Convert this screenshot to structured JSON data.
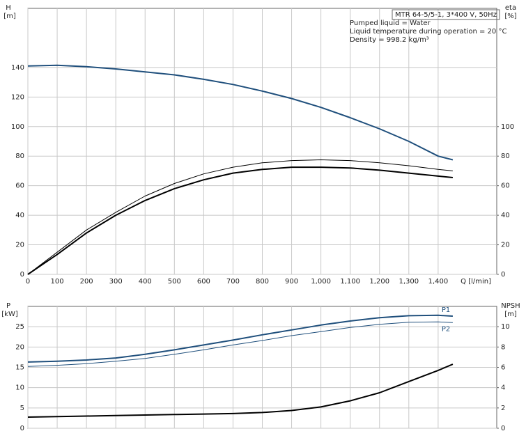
{
  "chart_data": [
    {
      "type": "line",
      "ylabel": "H",
      "yunit": "[m]",
      "y2label": "eta",
      "y2unit": "[%]",
      "xlabel": "Q [l/min]",
      "info": [
        "MTR 64-5/5-1, 3*400 V, 50Hz",
        "Pumped liquid = Water",
        "Liquid temperature during operation = 20 °C",
        "Density = 998.2 kg/m³"
      ],
      "xlim": [
        0,
        1600
      ],
      "xticks": [
        0,
        100,
        200,
        300,
        400,
        500,
        600,
        700,
        800,
        900,
        {
          "value": 1000,
          "label": "1,000"
        },
        {
          "value": 1100,
          "label": "1,100"
        },
        {
          "value": 1200,
          "label": "1,200"
        },
        {
          "value": 1300,
          "label": "1,300"
        },
        {
          "value": 1400,
          "label": "1,400"
        }
      ],
      "show_xtick_labels": true,
      "ylim": [
        0,
        180
      ],
      "yticks": [
        0,
        20,
        40,
        60,
        80,
        100,
        120,
        140
      ],
      "y2lim": [
        0,
        180
      ],
      "y2ticks": [
        0,
        20,
        40,
        60,
        80,
        100
      ],
      "grid": true,
      "x": [
        0,
        100,
        200,
        300,
        400,
        500,
        600,
        700,
        800,
        900,
        1000,
        1100,
        1200,
        1300,
        1400,
        1450
      ],
      "series": [
        {
          "color": "#1f4f7c",
          "line_width": 2,
          "values": [
            141,
            141.5,
            140.5,
            139,
            137,
            135,
            132,
            128.5,
            124,
            119,
            113,
            106,
            98.5,
            90,
            80,
            77.5
          ]
        },
        {
          "color": "#000000",
          "line_width": 1,
          "axis": "y2",
          "values": [
            0,
            15,
            30,
            42,
            53,
            61.5,
            68,
            72.5,
            75.5,
            77,
            77.5,
            77,
            75.5,
            73.5,
            71,
            70
          ]
        },
        {
          "color": "#000000",
          "line_width": 2,
          "axis": "y2",
          "values": [
            0,
            13.5,
            28,
            40,
            50,
            58,
            64,
            68.5,
            71,
            72.5,
            72.5,
            72,
            70.5,
            68.5,
            66.5,
            65.5
          ]
        }
      ]
    },
    {
      "type": "line",
      "ylabel": "P",
      "yunit": "[kW]",
      "y2label": "NPSH",
      "y2unit": "[m]",
      "xlim": [
        0,
        1600
      ],
      "xticks": [
        0,
        100,
        200,
        300,
        400,
        500,
        600,
        700,
        800,
        900,
        1000,
        1100,
        1200,
        1300,
        1400
      ],
      "show_xtick_labels": false,
      "ylim": [
        0,
        30
      ],
      "yticks": [
        0,
        5,
        10,
        15,
        20,
        25
      ],
      "y2lim": [
        0,
        12
      ],
      "y2ticks": [
        0,
        2,
        4,
        6,
        8,
        10
      ],
      "grid": true,
      "x": [
        0,
        100,
        200,
        300,
        400,
        500,
        600,
        700,
        800,
        900,
        1000,
        1100,
        1200,
        1300,
        1400,
        1450
      ],
      "series": [
        {
          "name": "P1",
          "color": "#1f4f7c",
          "line_width": 2,
          "values": [
            16.3,
            16.5,
            16.8,
            17.3,
            18.2,
            19.3,
            20.5,
            21.7,
            23,
            24.2,
            25.4,
            26.4,
            27.2,
            27.7,
            27.8,
            27.6
          ]
        },
        {
          "name": "P2",
          "color": "#1f4f7c",
          "line_width": 1,
          "values": [
            15.2,
            15.5,
            15.9,
            16.5,
            17.2,
            18.2,
            19.3,
            20.5,
            21.6,
            22.8,
            23.8,
            24.8,
            25.6,
            26.1,
            26.2,
            26
          ]
        },
        {
          "color": "#000000",
          "line_width": 2,
          "axis": "y2",
          "values": [
            1.1,
            1.15,
            1.2,
            1.25,
            1.3,
            1.35,
            1.4,
            1.45,
            1.55,
            1.75,
            2.1,
            2.7,
            3.5,
            4.6,
            5.7,
            6.3
          ]
        }
      ]
    }
  ]
}
